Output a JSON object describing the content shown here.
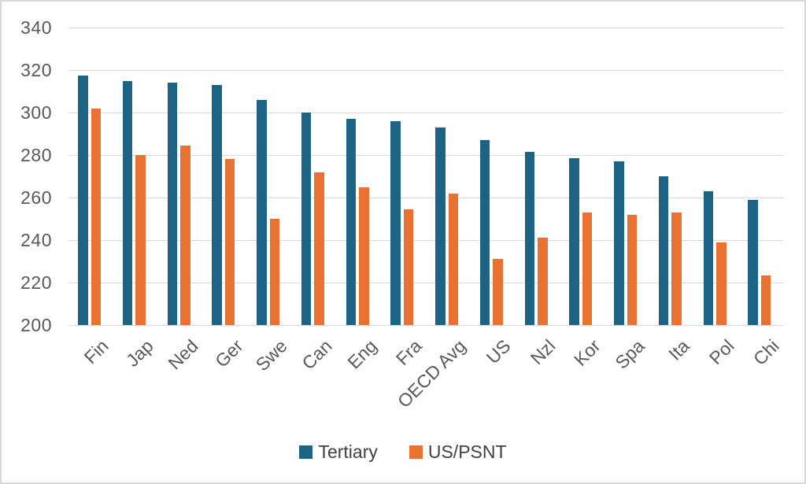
{
  "chart_data": {
    "type": "bar",
    "title": "",
    "xlabel": "",
    "ylabel": "",
    "categories": [
      "Fin",
      "Jap",
      "Ned",
      "Ger",
      "Swe",
      "Can",
      "Eng",
      "Fra",
      "OECD Avg",
      "US",
      "Nzl",
      "Kor",
      "Spa",
      "Ita",
      "Pol",
      "Chi"
    ],
    "series": [
      {
        "name": "Tertiary",
        "color": "#1d6383",
        "values": [
          317.5,
          315,
          314,
          313,
          306,
          300,
          297,
          296,
          293,
          287,
          281.5,
          278.5,
          277,
          270,
          263,
          259
        ]
      },
      {
        "name": "US/PSNT",
        "color": "#e97132",
        "values": [
          302,
          280,
          284.5,
          278,
          250,
          272,
          265,
          254.5,
          262,
          231,
          241,
          253,
          252,
          253,
          239,
          223.5
        ]
      }
    ],
    "ylim": [
      200,
      340
    ],
    "yticks": [
      200,
      220,
      240,
      260,
      280,
      300,
      320,
      340
    ],
    "grid": true,
    "legend_position": "bottom",
    "x_tick_rotation_deg": 45
  },
  "style": {
    "gridline_color": "#d9d9d9",
    "axis_text_color": "#595959",
    "legend_text_color": "#404040",
    "background_color": "#ffffff",
    "border_color": "#d7d7d7"
  }
}
